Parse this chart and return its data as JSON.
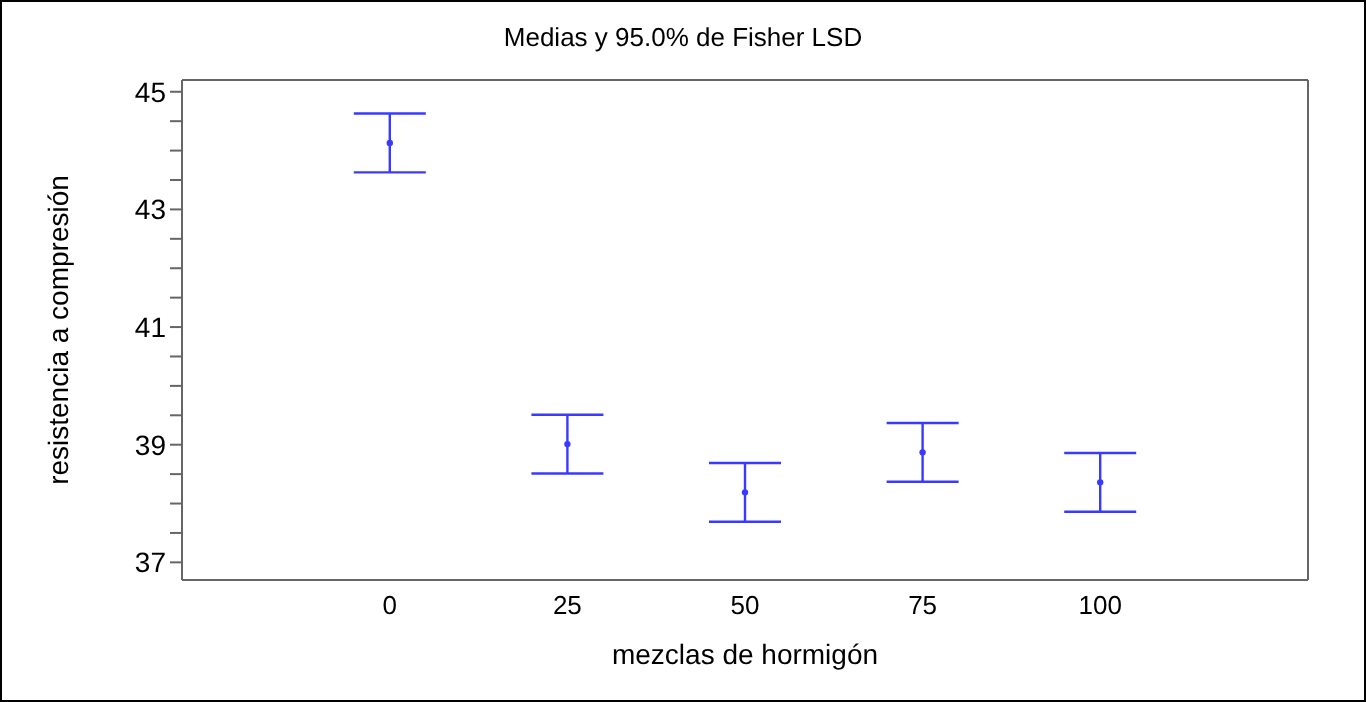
{
  "chart_data": {
    "type": "scatter",
    "title": "Medias y 95.0% de Fisher LSD",
    "xlabel": "mezclas de hormigón",
    "ylabel": "resistencia a compresión",
    "categories": [
      "0",
      "25",
      "50",
      "75",
      "100"
    ],
    "series": [
      {
        "color": "#3a3aff",
        "values": [
          44.13,
          39.01,
          38.19,
          38.87,
          38.36
        ],
        "errors": [
          0.5,
          0.5,
          0.5,
          0.5,
          0.5
        ]
      }
    ],
    "ylim": [
      36.7,
      45.2
    ],
    "yticks": [
      37,
      {
        "value": 37.5,
        "label": null
      },
      {
        "value": 38,
        "label": null
      },
      {
        "value": 38.5,
        "label": null
      },
      39,
      {
        "value": 39.5,
        "label": null
      },
      {
        "value": 40,
        "label": null
      },
      {
        "value": 40.5,
        "label": null
      },
      41,
      {
        "value": 41.5,
        "label": null
      },
      {
        "value": 42,
        "label": null
      },
      {
        "value": 42.5,
        "label": null
      },
      43,
      {
        "value": 43.5,
        "label": null
      },
      {
        "value": 44,
        "label": null
      },
      {
        "value": 44.5,
        "label": null
      },
      45
    ],
    "marker": "circle"
  }
}
